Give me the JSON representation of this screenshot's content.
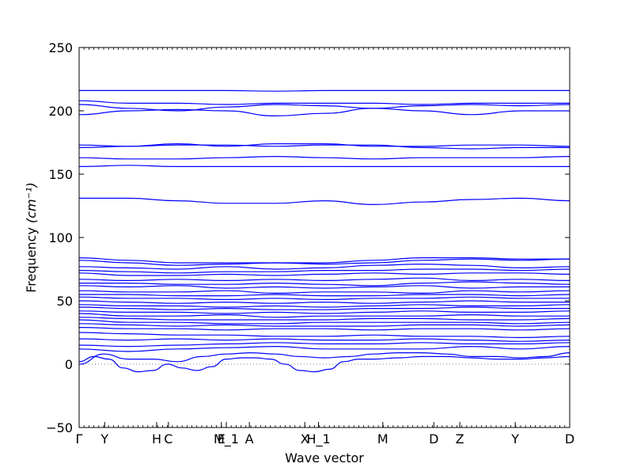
{
  "chart_data": {
    "type": "line",
    "xlabel": "Wave vector",
    "ylabel": "Frequency",
    "ylabel_unit": "(cm⁻¹)",
    "ylim": [
      -50,
      250
    ],
    "yticks": [
      -50,
      0,
      50,
      100,
      150,
      200,
      250
    ],
    "grid": false,
    "line_color": "#0000ff",
    "zero_line_color": "#808080",
    "high_symmetry_points": [
      {
        "label": "Γ",
        "x": 0.0
      },
      {
        "label": "Y",
        "x": 0.052
      },
      {
        "label": "H",
        "x": 0.158
      },
      {
        "label": "C",
        "x": 0.182
      },
      {
        "label": "E",
        "x": 0.29
      },
      {
        "label": "M_1",
        "x": 0.3
      },
      {
        "label": "A",
        "x": 0.347
      },
      {
        "label": "X",
        "x": 0.46
      },
      {
        "label": "H_1",
        "x": 0.488
      },
      {
        "label": "M",
        "x": 0.619
      },
      {
        "label": "D",
        "x": 0.723
      },
      {
        "label": "Z",
        "x": 0.776
      },
      {
        "label": "Y",
        "x": 0.889
      },
      {
        "label": "D",
        "x": 1.0
      }
    ],
    "xlim": [
      0,
      1
    ],
    "series": [
      {
        "x": [
          0.0,
          0.1,
          0.2,
          0.3,
          0.4,
          0.5,
          0.6,
          0.7,
          0.8,
          0.9,
          1.0
        ],
        "values": [
          216,
          216,
          216,
          216,
          215.5,
          216,
          216,
          216,
          216,
          216,
          216
        ]
      },
      {
        "x": [
          0.0,
          0.1,
          0.2,
          0.3,
          0.4,
          0.5,
          0.6,
          0.7,
          0.8,
          0.9,
          1.0
        ],
        "values": [
          208,
          206,
          206,
          205,
          206,
          206,
          206,
          205,
          206,
          206,
          206
        ]
      },
      {
        "x": [
          0.0,
          0.1,
          0.2,
          0.3,
          0.4,
          0.5,
          0.6,
          0.7,
          0.8,
          0.9,
          1.0
        ],
        "values": [
          205,
          202,
          200,
          203,
          205,
          204,
          202,
          204,
          205,
          204,
          205
        ]
      },
      {
        "x": [
          0.0,
          0.1,
          0.2,
          0.3,
          0.4,
          0.5,
          0.6,
          0.7,
          0.8,
          0.9,
          1.0
        ],
        "values": [
          197,
          200,
          201,
          200,
          196,
          198,
          202,
          200,
          197,
          200,
          200
        ]
      },
      {
        "x": [
          0.0,
          0.1,
          0.2,
          0.3,
          0.4,
          0.5,
          0.6,
          0.7,
          0.8,
          0.9,
          1.0
        ],
        "values": [
          173,
          172,
          174,
          172,
          174,
          174,
          172,
          172,
          173,
          173,
          172
        ]
      },
      {
        "x": [
          0.0,
          0.1,
          0.2,
          0.3,
          0.4,
          0.5,
          0.6,
          0.7,
          0.8,
          0.9,
          1.0
        ],
        "values": [
          171,
          172,
          173,
          173,
          172,
          173,
          173,
          171,
          170,
          171,
          171
        ]
      },
      {
        "x": [
          0.0,
          0.1,
          0.2,
          0.3,
          0.4,
          0.5,
          0.6,
          0.7,
          0.8,
          0.9,
          1.0
        ],
        "values": [
          163,
          162,
          162,
          163,
          164,
          163,
          162,
          163,
          163,
          163,
          164
        ]
      },
      {
        "x": [
          0.0,
          0.1,
          0.2,
          0.3,
          0.4,
          0.5,
          0.6,
          0.7,
          0.8,
          0.9,
          1.0
        ],
        "values": [
          156,
          157,
          156,
          156,
          156,
          156,
          156,
          156,
          156,
          156,
          156
        ]
      },
      {
        "x": [
          0.0,
          0.1,
          0.2,
          0.3,
          0.4,
          0.5,
          0.6,
          0.7,
          0.8,
          0.9,
          1.0
        ],
        "values": [
          131,
          131,
          129,
          127,
          127,
          129,
          126,
          128,
          130,
          131,
          129
        ]
      },
      {
        "x": [
          0.0,
          0.1,
          0.2,
          0.3,
          0.4,
          0.5,
          0.6,
          0.7,
          0.8,
          0.9,
          1.0
        ],
        "values": [
          84,
          82,
          80,
          80,
          80,
          80,
          82,
          84,
          84,
          83,
          83
        ]
      },
      {
        "x": [
          0.0,
          0.1,
          0.2,
          0.3,
          0.4,
          0.5,
          0.6,
          0.7,
          0.8,
          0.9,
          1.0
        ],
        "values": [
          82,
          80,
          78,
          79,
          80,
          79,
          80,
          82,
          83,
          82,
          83
        ]
      },
      {
        "x": [
          0.0,
          0.1,
          0.2,
          0.3,
          0.4,
          0.5,
          0.6,
          0.7,
          0.8,
          0.9,
          1.0
        ],
        "values": [
          77,
          76,
          75,
          77,
          75,
          76,
          78,
          79,
          78,
          76,
          77
        ]
      },
      {
        "x": [
          0.0,
          0.1,
          0.2,
          0.3,
          0.4,
          0.5,
          0.6,
          0.7,
          0.8,
          0.9,
          1.0
        ],
        "values": [
          74,
          73,
          72,
          73,
          73,
          74,
          74,
          75,
          75,
          74,
          75
        ]
      },
      {
        "x": [
          0.0,
          0.1,
          0.2,
          0.3,
          0.4,
          0.5,
          0.6,
          0.7,
          0.8,
          0.9,
          1.0
        ],
        "values": [
          72,
          70,
          70,
          71,
          70,
          71,
          72,
          71,
          72,
          72,
          71
        ]
      },
      {
        "x": [
          0.0,
          0.1,
          0.2,
          0.3,
          0.4,
          0.5,
          0.6,
          0.7,
          0.8,
          0.9,
          1.0
        ],
        "values": [
          67,
          66,
          67,
          66,
          67,
          66,
          67,
          68,
          66,
          67,
          66
        ]
      },
      {
        "x": [
          0.0,
          0.1,
          0.2,
          0.3,
          0.4,
          0.5,
          0.6,
          0.7,
          0.8,
          0.9,
          1.0
        ],
        "values": [
          64,
          64,
          63,
          63,
          64,
          63,
          62,
          64,
          65,
          64,
          63
        ]
      },
      {
        "x": [
          0.0,
          0.1,
          0.2,
          0.3,
          0.4,
          0.5,
          0.6,
          0.7,
          0.8,
          0.9,
          1.0
        ],
        "values": [
          62,
          61,
          62,
          60,
          61,
          60,
          61,
          62,
          60,
          61,
          61
        ]
      },
      {
        "x": [
          0.0,
          0.1,
          0.2,
          0.3,
          0.4,
          0.5,
          0.6,
          0.7,
          0.8,
          0.9,
          1.0
        ],
        "values": [
          58,
          57,
          57,
          58,
          56,
          57,
          57,
          56,
          58,
          57,
          58
        ]
      },
      {
        "x": [
          0.0,
          0.1,
          0.2,
          0.3,
          0.4,
          0.5,
          0.6,
          0.7,
          0.8,
          0.9,
          1.0
        ],
        "values": [
          55,
          55,
          54,
          54,
          55,
          54,
          54,
          55,
          55,
          54,
          55
        ]
      },
      {
        "x": [
          0.0,
          0.1,
          0.2,
          0.3,
          0.4,
          0.5,
          0.6,
          0.7,
          0.8,
          0.9,
          1.0
        ],
        "values": [
          53,
          52,
          52,
          51,
          52,
          51,
          52,
          52,
          53,
          52,
          52
        ]
      },
      {
        "x": [
          0.0,
          0.1,
          0.2,
          0.3,
          0.4,
          0.5,
          0.6,
          0.7,
          0.8,
          0.9,
          1.0
        ],
        "values": [
          50,
          49,
          48,
          49,
          48,
          49,
          48,
          49,
          50,
          49,
          49
        ]
      },
      {
        "x": [
          0.0,
          0.1,
          0.2,
          0.3,
          0.4,
          0.5,
          0.6,
          0.7,
          0.8,
          0.9,
          1.0
        ],
        "values": [
          47,
          46,
          46,
          45,
          46,
          45,
          46,
          47,
          46,
          46,
          47
        ]
      },
      {
        "x": [
          0.0,
          0.1,
          0.2,
          0.3,
          0.4,
          0.5,
          0.6,
          0.7,
          0.8,
          0.9,
          1.0
        ],
        "values": [
          45,
          44,
          43,
          44,
          43,
          43,
          44,
          44,
          45,
          44,
          44
        ]
      },
      {
        "x": [
          0.0,
          0.1,
          0.2,
          0.3,
          0.4,
          0.5,
          0.6,
          0.7,
          0.8,
          0.9,
          1.0
        ],
        "values": [
          42,
          41,
          41,
          40,
          41,
          40,
          41,
          42,
          41,
          41,
          42
        ]
      },
      {
        "x": [
          0.0,
          0.1,
          0.2,
          0.3,
          0.4,
          0.5,
          0.6,
          0.7,
          0.8,
          0.9,
          1.0
        ],
        "values": [
          40,
          38,
          38,
          39,
          37,
          38,
          38,
          38,
          39,
          38,
          38
        ]
      },
      {
        "x": [
          0.0,
          0.1,
          0.2,
          0.3,
          0.4,
          0.5,
          0.6,
          0.7,
          0.8,
          0.9,
          1.0
        ],
        "values": [
          37,
          36,
          35,
          35,
          35,
          35,
          36,
          36,
          35,
          35,
          36
        ]
      },
      {
        "x": [
          0.0,
          0.1,
          0.2,
          0.3,
          0.4,
          0.5,
          0.6,
          0.7,
          0.8,
          0.9,
          1.0
        ],
        "values": [
          35,
          33,
          33,
          32,
          32,
          33,
          33,
          33,
          33,
          32,
          33
        ]
      },
      {
        "x": [
          0.0,
          0.1,
          0.2,
          0.3,
          0.4,
          0.5,
          0.6,
          0.7,
          0.8,
          0.9,
          1.0
        ],
        "values": [
          32,
          31,
          30,
          31,
          30,
          30,
          30,
          31,
          31,
          30,
          31
        ]
      },
      {
        "x": [
          0.0,
          0.1,
          0.2,
          0.3,
          0.4,
          0.5,
          0.6,
          0.7,
          0.8,
          0.9,
          1.0
        ],
        "values": [
          29,
          28,
          28,
          27,
          28,
          28,
          27,
          28,
          28,
          27,
          28
        ]
      },
      {
        "x": [
          0.0,
          0.1,
          0.2,
          0.3,
          0.4,
          0.5,
          0.6,
          0.7,
          0.8,
          0.9,
          1.0
        ],
        "values": [
          25,
          24,
          23,
          23,
          22,
          22,
          23,
          22,
          22,
          21,
          22
        ]
      },
      {
        "x": [
          0.0,
          0.1,
          0.2,
          0.3,
          0.4,
          0.5,
          0.6,
          0.7,
          0.8,
          0.9,
          1.0
        ],
        "values": [
          20,
          19,
          20,
          19,
          20,
          19,
          19,
          20,
          19,
          18,
          19
        ]
      },
      {
        "x": [
          0.0,
          0.1,
          0.2,
          0.3,
          0.4,
          0.5,
          0.6,
          0.7,
          0.8,
          0.9,
          1.0
        ],
        "values": [
          15,
          14,
          15,
          16,
          17,
          16,
          16,
          17,
          16,
          16,
          17
        ]
      },
      {
        "x": [
          0.0,
          0.1,
          0.2,
          0.3,
          0.4,
          0.5,
          0.6,
          0.7,
          0.8,
          0.9,
          1.0
        ],
        "values": [
          12,
          10,
          12,
          13,
          14,
          12,
          12,
          12,
          14,
          12,
          14
        ]
      },
      {
        "x": [
          0.0,
          0.05,
          0.1,
          0.15,
          0.2,
          0.25,
          0.3,
          0.35,
          0.4,
          0.45,
          0.5,
          0.55,
          0.6,
          0.65,
          0.7,
          0.75,
          0.8,
          0.85,
          0.9,
          0.95,
          1.0
        ],
        "values": [
          0,
          8,
          4,
          4,
          2,
          6,
          8,
          9,
          8,
          6,
          5,
          6,
          8,
          9,
          9,
          8,
          6,
          6,
          5,
          6,
          9
        ]
      },
      {
        "x": [
          0.0,
          0.03,
          0.06,
          0.09,
          0.12,
          0.15,
          0.18,
          0.21,
          0.24,
          0.27,
          0.3,
          0.33,
          0.36,
          0.39,
          0.42,
          0.45,
          0.48,
          0.51,
          0.54,
          0.57,
          0.6,
          0.65,
          0.7,
          0.75,
          0.8,
          0.85,
          0.9,
          0.95,
          1.0
        ],
        "values": [
          2,
          6,
          4,
          -3,
          -6,
          -5,
          0,
          -3,
          -5,
          -2,
          4,
          5,
          5,
          4,
          0,
          -5,
          -6,
          -4,
          2,
          4,
          4,
          5,
          6,
          6,
          5,
          4,
          4,
          5,
          6
        ]
      }
    ]
  }
}
